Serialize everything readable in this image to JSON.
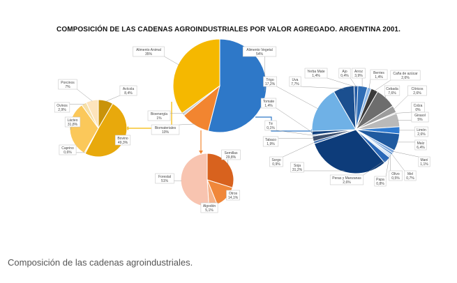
{
  "title": "COMPOSICIÓN DE LAS CADENAS AGROINDUSTRIALES POR VALOR AGREGADO. ARGENTINA 2001.",
  "caption": "Composición de las cadenas agroindustriales.",
  "chart_data": [
    {
      "type": "pie",
      "group": "central",
      "categories": [
        "Alimento Vegetal",
        "Biomateriales",
        "Bioenergía",
        "Alimento Animal"
      ],
      "values": [
        54,
        10,
        1,
        35
      ],
      "labels": [
        "54%",
        "10%",
        "1%",
        "35%"
      ],
      "colors": [
        "#2e78c8",
        "#f28530",
        "#c9d0d8",
        "#f5b800"
      ]
    },
    {
      "type": "pie",
      "group": "alimento-animal",
      "categories": [
        "Avícola",
        "Bovino",
        "Caprino",
        "Lácteo",
        "Ovinos",
        "Porcinos"
      ],
      "values": [
        8.4,
        49.3,
        0.6,
        31.8,
        2.9,
        7
      ],
      "labels": [
        "8,4%",
        "49,3%",
        "0,6%",
        "31,8%",
        "2,9%",
        "7%"
      ],
      "colors": [
        "#c9930a",
        "#e8a90c",
        "#f3d27a",
        "#fbc85a",
        "#f6dfa6",
        "#fde4bc"
      ]
    },
    {
      "type": "pie",
      "group": "biomateriales",
      "categories": [
        "Semillas",
        "Otros",
        "Algodón",
        "Forestal"
      ],
      "values": [
        29.8,
        14.1,
        5.1,
        51
      ],
      "labels": [
        "29,8%",
        "14,1%",
        "5,1%",
        "51%"
      ],
      "colors": [
        "#d8621e",
        "#f0873a",
        "#f6b38a",
        "#f8c4b0"
      ]
    },
    {
      "type": "pie",
      "group": "alimento-vegetal",
      "categories": [
        "Ajo",
        "Arroz",
        "Berries",
        "Caña de azúcar",
        "Cebada",
        "Cítricos",
        "Colza",
        "Girasol",
        "Limón",
        "Maíz",
        "Maní",
        "Mel",
        "Olivo",
        "Papa",
        "Peras y Manzanas",
        "Soja",
        "Sorgo",
        "Tabaco",
        "Té",
        "Tomate",
        "Trigo",
        "Uva",
        "Yerba Mate"
      ],
      "values": [
        0.4,
        3.9,
        1.4,
        2.6,
        7.6,
        2.6,
        0,
        5,
        2.6,
        6.4,
        1.1,
        0.7,
        0.5,
        0.8,
        2.6,
        31.2,
        0.9,
        1.9,
        0.1,
        1.4,
        17.2,
        7.7,
        1.4
      ],
      "labels": [
        "0,4%",
        "3,9%",
        "1,4%",
        "2,6%",
        "7,6%",
        "2,6%",
        "0%",
        "5%",
        "2,6%",
        "6,4%",
        "1,1%",
        "0,7%",
        "0,5%",
        "0,8%",
        "2,6%",
        "31,2%",
        "0,9%",
        "1,9%",
        "0,1%",
        "1,4%",
        "17,2%",
        "7,7%",
        "1,4%"
      ],
      "colors": [
        "#5b8fd0",
        "#2f6db5",
        "#8bb7e8",
        "#3a3a3a",
        "#6d6d6d",
        "#9c9c9c",
        "#c2c2c2",
        "#b9b9b9",
        "#2f7bd1",
        "#1f5aa0",
        "#7aa6de",
        "#4a86cc",
        "#9ec3ec",
        "#c8dcf3",
        "#2a68b8",
        "#0d3c7a",
        "#3f72b5",
        "#3c4f6e",
        "#6a86b0",
        "#13427f",
        "#6fb1e6",
        "#1b4f8f",
        "#2059a3"
      ]
    }
  ]
}
